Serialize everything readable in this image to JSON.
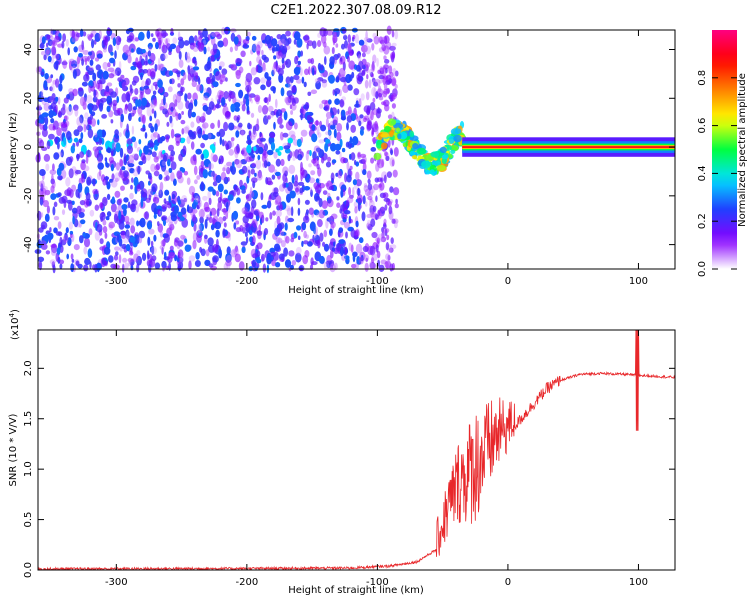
{
  "title": "C2E1.2022.307.08.09.R12",
  "chart_data": [
    {
      "type": "heatmap",
      "xlabel": "Height of straight line (km)",
      "ylabel": "Frequency (Hz)",
      "xlim": [
        -360,
        128
      ],
      "ylim": [
        -50,
        48
      ],
      "xticks": [
        -300,
        -200,
        -100,
        0,
        100
      ],
      "yticks": [
        -40,
        -20,
        0,
        20,
        40
      ],
      "colorbar": {
        "label": "Normalized spectral amplitude",
        "range": [
          0,
          1
        ],
        "ticks": [
          "0.0",
          "0.2",
          "0.4",
          "0.6",
          "0.8"
        ],
        "colors": [
          "#ffffff",
          "#8800ff",
          "#2040ff",
          "#00e0ff",
          "#00ff40",
          "#ffff00",
          "#ff8000",
          "#ff0000",
          "#ff0080"
        ]
      },
      "features": {
        "noise_region_x": [
          -360,
          -100
        ],
        "noise_amplitude": 0.15,
        "signal_line": {
          "x_start": -35,
          "x_end": 128,
          "frequency": 0,
          "amplitude": 0.9
        },
        "transition_x": [
          -100,
          -35
        ]
      }
    },
    {
      "type": "line",
      "xlabel": "Height of straight line (km)",
      "ylabel": "SNR (10 * V/V)",
      "yscale_label": "(x10",
      "yscale_exp": "4",
      "yscale_close": ")",
      "xlim": [
        -360,
        128
      ],
      "ylim": [
        0,
        2.38
      ],
      "xticks": [
        -300,
        -200,
        -100,
        0,
        100
      ],
      "yticks": [
        "0.0",
        "0.5",
        "1.0",
        "1.5",
        "2.0"
      ],
      "line_color": "#e8272a",
      "envelope": [
        [
          -360,
          0.01
        ],
        [
          -200,
          0.015
        ],
        [
          -120,
          0.02
        ],
        [
          -90,
          0.04
        ],
        [
          -70,
          0.08
        ],
        [
          -55,
          0.2
        ],
        [
          -45,
          0.55
        ],
        [
          -38,
          0.75
        ],
        [
          -30,
          0.8
        ],
        [
          -20,
          0.95
        ],
        [
          -10,
          1.2
        ],
        [
          0,
          1.35
        ],
        [
          10,
          1.5
        ],
        [
          20,
          1.65
        ],
        [
          30,
          1.8
        ],
        [
          40,
          1.88
        ],
        [
          55,
          1.94
        ],
        [
          70,
          1.95
        ],
        [
          90,
          1.94
        ],
        [
          100,
          1.93
        ],
        [
          115,
          1.92
        ],
        [
          128,
          1.91
        ]
      ],
      "spike": {
        "x": 99,
        "max": 2.38,
        "min": 1.38
      }
    }
  ]
}
